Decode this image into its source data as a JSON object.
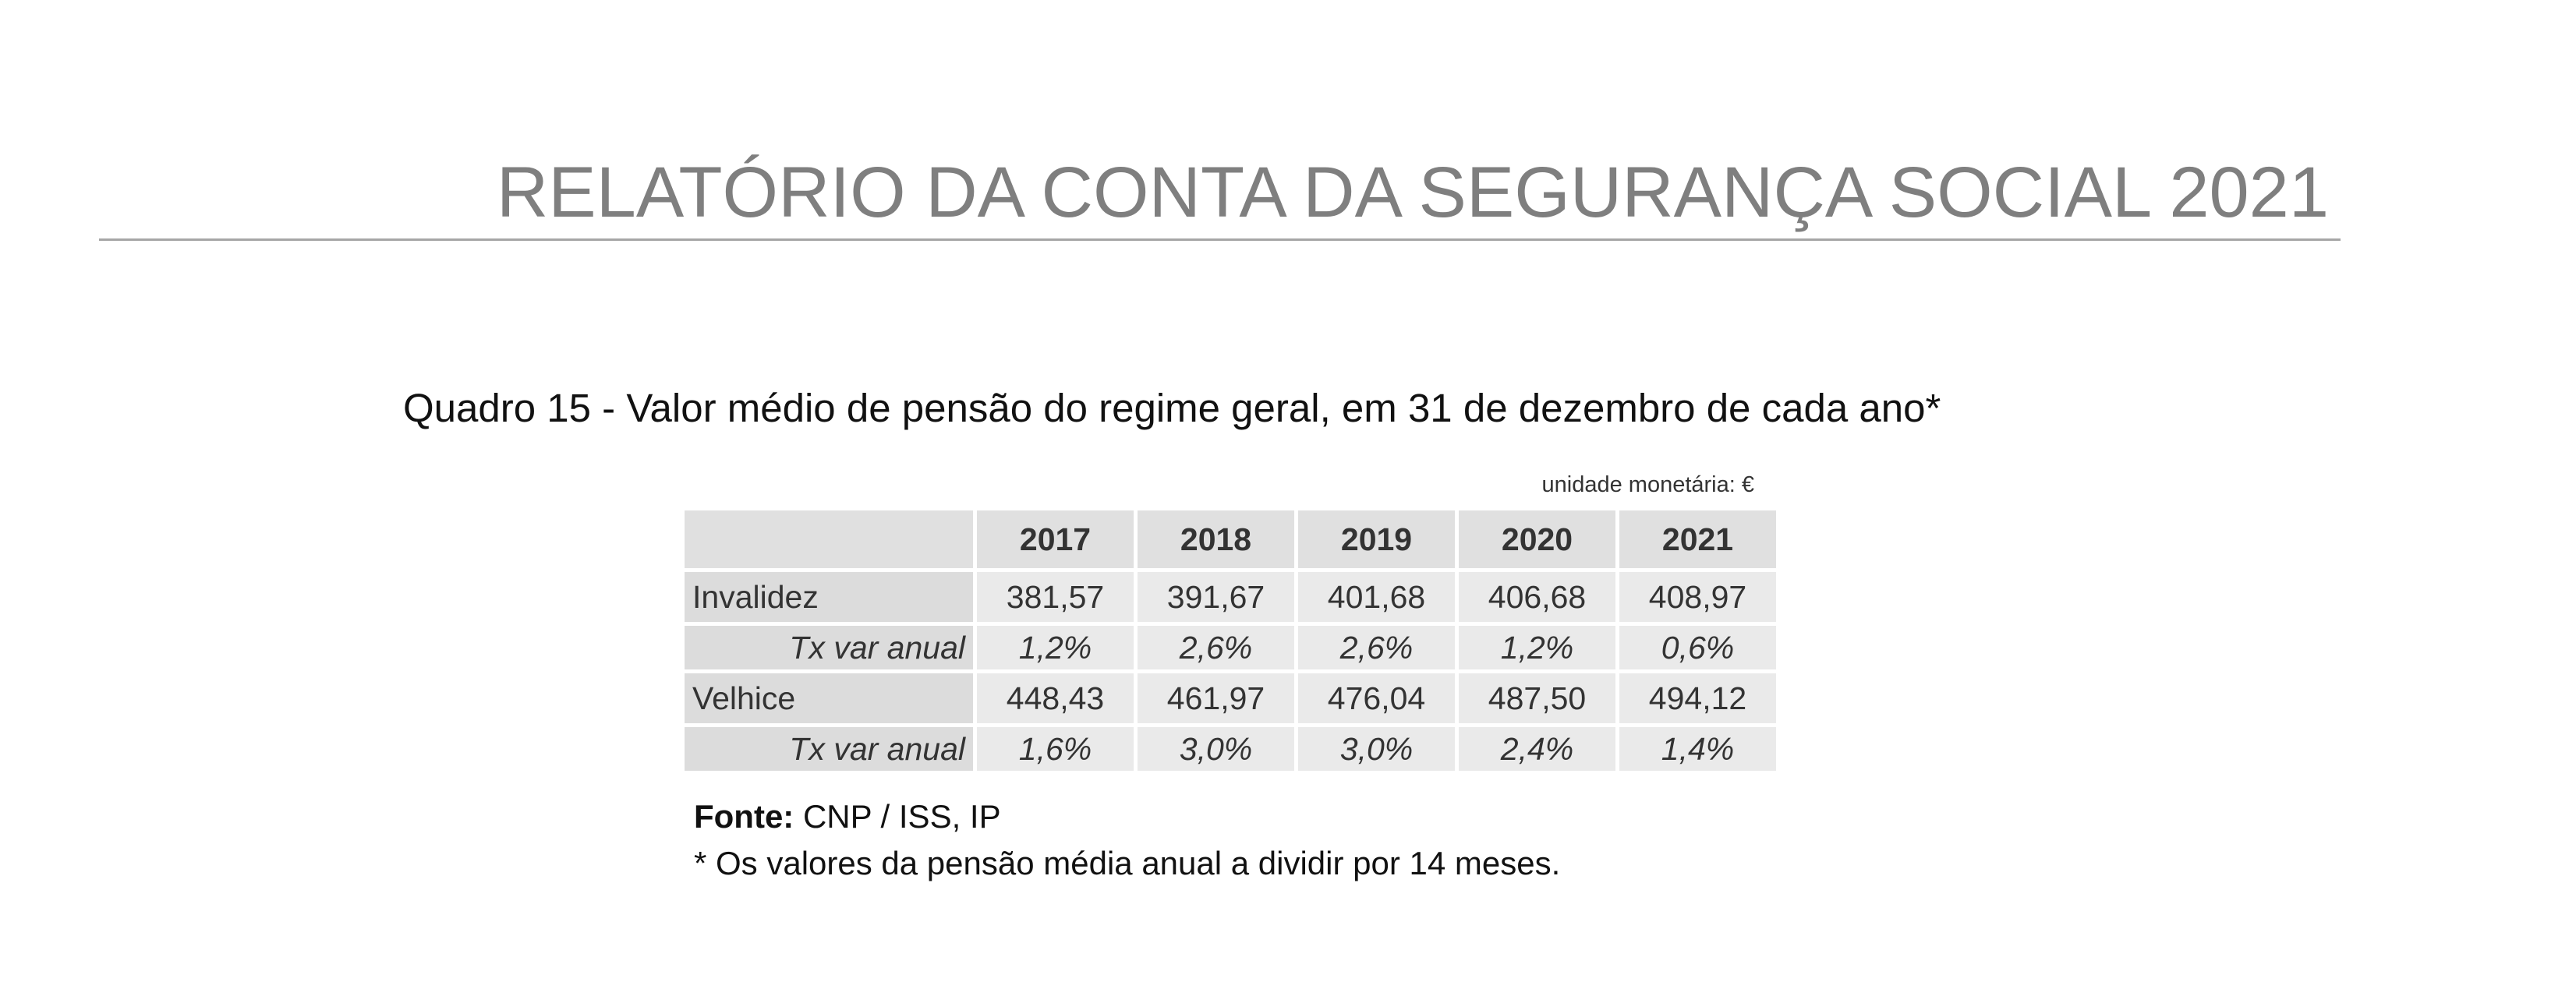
{
  "header": {
    "title": "RELATÓRIO DA CONTA DA SEGURANÇA SOCIAL 2021"
  },
  "table": {
    "caption": "Quadro 15 - Valor médio de pensão do regime geral, em 31 de dezembro de cada ano*",
    "unit": "unidade monetária: €",
    "columns": [
      "2017",
      "2018",
      "2019",
      "2020",
      "2021"
    ],
    "rows": [
      [
        "Invalidez",
        "381,57",
        "391,67",
        "401,68",
        "406,68",
        "408,97"
      ],
      [
        "Tx var anual",
        "1,2%",
        "2,6%",
        "2,6%",
        "1,2%",
        "0,6%"
      ],
      [
        "Velhice",
        "448,43",
        "461,97",
        "476,04",
        "487,50",
        "494,12"
      ],
      [
        "Tx var anual",
        "1,6%",
        "3,0%",
        "3,0%",
        "2,4%",
        "1,4%"
      ]
    ]
  },
  "footer": {
    "source_label": "Fonte:",
    "source": "CNP / ISS, IP",
    "note": "* Os valores da pensão média anual a dividir por 14 meses."
  }
}
